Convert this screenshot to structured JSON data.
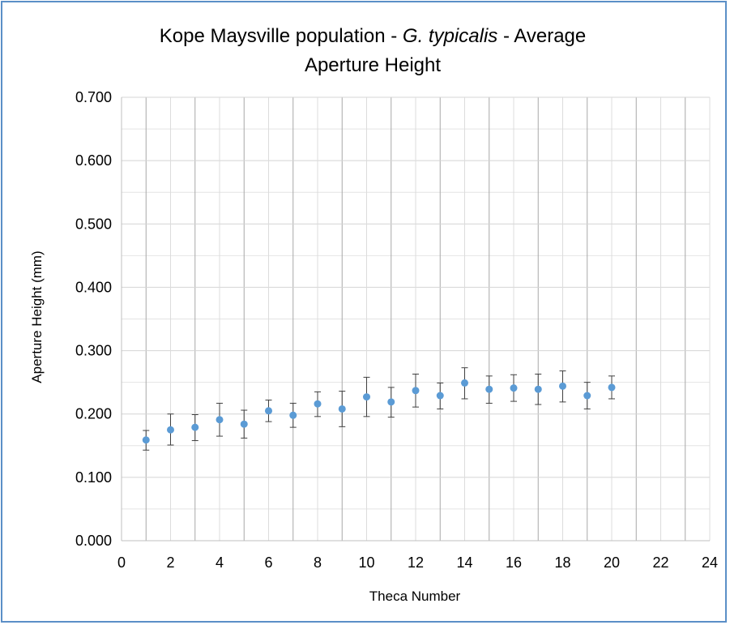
{
  "chart_data": {
    "type": "scatter",
    "title_parts": [
      "Kope Maysville population - ",
      "G. typicalis",
      " - Average"
    ],
    "title_line2": "Aperture Height",
    "xlabel": "Theca Number",
    "ylabel": "Aperture Height  (mm)",
    "xlim": [
      0,
      24
    ],
    "ylim": [
      0,
      0.7
    ],
    "xticks": [
      "0",
      "2",
      "4",
      "6",
      "8",
      "10",
      "12",
      "14",
      "16",
      "18",
      "20",
      "22",
      "24"
    ],
    "yticks": [
      "0.000",
      "0.100",
      "0.200",
      "0.300",
      "0.400",
      "0.500",
      "0.600",
      "0.700"
    ],
    "grid": true,
    "marker_color": "#5b9bd5",
    "series": [
      {
        "x": [
          1,
          2,
          3,
          4,
          5,
          6,
          7,
          8,
          9,
          10,
          11,
          12,
          13,
          14,
          15,
          16,
          17,
          18,
          19,
          20
        ],
        "y": [
          0.159,
          0.175,
          0.179,
          0.191,
          0.184,
          0.205,
          0.198,
          0.216,
          0.208,
          0.227,
          0.219,
          0.237,
          0.229,
          0.249,
          0.239,
          0.241,
          0.239,
          0.244,
          0.229,
          0.242
        ],
        "error_low": [
          0.143,
          0.151,
          0.158,
          0.165,
          0.162,
          0.188,
          0.179,
          0.196,
          0.18,
          0.196,
          0.195,
          0.211,
          0.208,
          0.224,
          0.217,
          0.22,
          0.215,
          0.219,
          0.208,
          0.224
        ],
        "error_high": [
          0.174,
          0.2,
          0.199,
          0.217,
          0.206,
          0.222,
          0.217,
          0.235,
          0.236,
          0.258,
          0.242,
          0.263,
          0.249,
          0.273,
          0.26,
          0.262,
          0.263,
          0.268,
          0.25,
          0.26
        ]
      }
    ]
  }
}
